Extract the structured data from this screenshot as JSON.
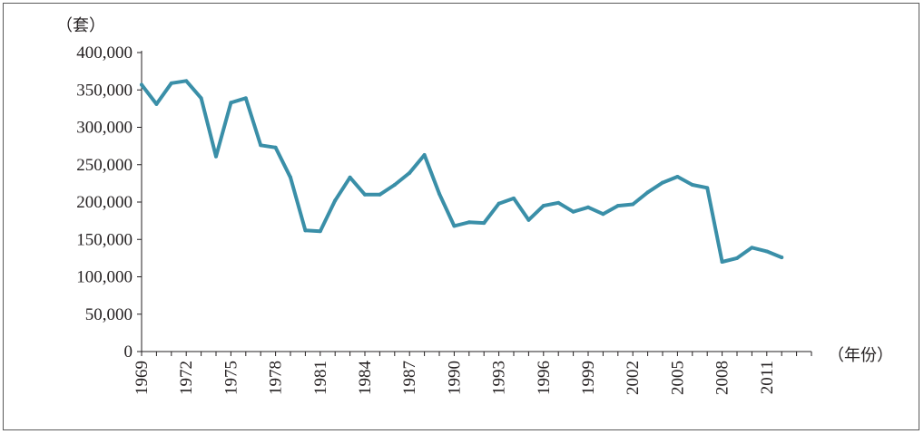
{
  "chart_data": {
    "type": "line",
    "ylabel": "（套）",
    "xlabel": "（年份）",
    "ylim": [
      0,
      400000
    ],
    "yticks": [
      0,
      50000,
      100000,
      150000,
      200000,
      250000,
      300000,
      350000,
      400000
    ],
    "ytick_labels": [
      "0",
      "50,000",
      "100,000",
      "150,000",
      "200,000",
      "250,000",
      "300,000",
      "350,000",
      "400,000"
    ],
    "xlim": [
      1969,
      2014
    ],
    "xticks": [
      1969,
      1972,
      1975,
      1978,
      1981,
      1984,
      1987,
      1990,
      1993,
      1996,
      1999,
      2002,
      2005,
      2008,
      2011
    ],
    "xtick_labels": [
      "1969",
      "1972",
      "1975",
      "1978",
      "1981",
      "1984",
      "1987",
      "1990",
      "1993",
      "1996",
      "1999",
      "2002",
      "2005",
      "2008",
      "2011"
    ],
    "grid": false,
    "line_color": "#3a8fa8",
    "series": [
      {
        "x": [
          1969,
          1970,
          1971,
          1972,
          1973,
          1974,
          1975,
          1976,
          1977,
          1978,
          1979,
          1980,
          1981,
          1982,
          1983,
          1984,
          1985,
          1986,
          1987,
          1988,
          1989,
          1990,
          1991,
          1992,
          1993,
          1994,
          1995,
          1996,
          1997,
          1998,
          1999,
          2000,
          2001,
          2002,
          2003,
          2004,
          2005,
          2006,
          2007,
          2008,
          2009,
          2010,
          2011,
          2012
        ],
        "values": [
          357000,
          331000,
          359000,
          362000,
          339000,
          261000,
          333000,
          339000,
          276000,
          273000,
          233000,
          162000,
          161000,
          202000,
          233000,
          210000,
          210000,
          223000,
          239000,
          263000,
          211000,
          168000,
          173000,
          172000,
          198000,
          205000,
          176000,
          195000,
          199000,
          187000,
          193000,
          184000,
          195000,
          197000,
          213000,
          226000,
          234000,
          223000,
          219000,
          120000,
          125000,
          139000,
          134000,
          126000
        ]
      }
    ]
  }
}
